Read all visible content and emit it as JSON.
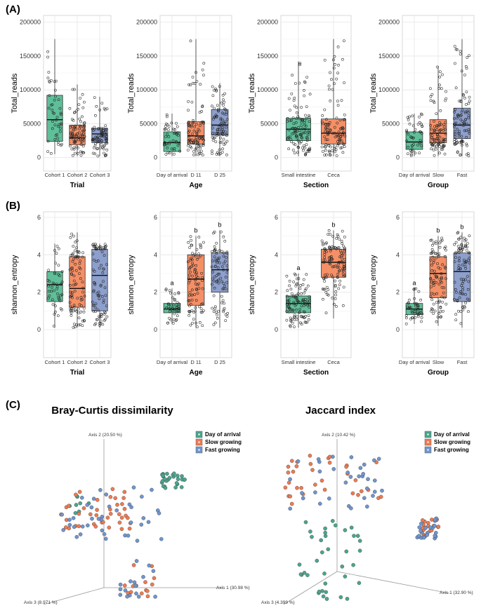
{
  "panel_labels": [
    "(A)",
    "(B)",
    "(C)"
  ],
  "colors": {
    "cat1": "#66c2a5",
    "cat2": "#fc8d62",
    "cat3": "#8da0cb",
    "box1": "#5fbf99",
    "box2": "#f58f66",
    "box3": "#8d9fcc",
    "grid": "#e6e6e6",
    "panel_border": "#cfcfcf",
    "leg_day": "#4aa58e",
    "leg_slow": "#f07a50",
    "leg_fast": "#6e95cf"
  },
  "chart_data": [
    {
      "type": "box",
      "panel": "A",
      "title": "",
      "ylabel": "Total_reads",
      "xlabel": "Trial",
      "ylim": [
        -20000,
        210000
      ],
      "yticks": [
        0,
        50000,
        100000,
        150000,
        200000
      ],
      "ytick_labels": [
        "0",
        "50000",
        "100000",
        "150000",
        "200000"
      ],
      "categories": [
        "Cohort 1",
        "Cohort 2",
        "Cohort 3"
      ],
      "boxes": [
        {
          "min": 5000,
          "q1": 24000,
          "median": 56000,
          "q3": 92000,
          "max": 175000,
          "n": 45,
          "seed": 11
        },
        {
          "min": 2000,
          "q1": 19000,
          "median": 29000,
          "q3": 48000,
          "max": 108000,
          "n": 85,
          "seed": 12
        },
        {
          "min": 2000,
          "q1": 22000,
          "median": 35000,
          "q3": 43000,
          "max": 90000,
          "n": 80,
          "seed": 13
        }
      ],
      "letters": [
        "",
        "",
        ""
      ]
    },
    {
      "type": "box",
      "panel": "A",
      "title": "",
      "ylabel": "Total_reads",
      "xlabel": "Age",
      "ylim": [
        -20000,
        210000
      ],
      "yticks": [
        0,
        50000,
        100000,
        150000,
        200000
      ],
      "ytick_labels": [
        "0",
        "50000",
        "100000",
        "150000",
        "200000"
      ],
      "categories": [
        "Day of arrival",
        "D 11",
        "D 25"
      ],
      "boxes": [
        {
          "min": 2000,
          "q1": 9000,
          "median": 22000,
          "q3": 38000,
          "max": 65000,
          "n": 45,
          "seed": 21
        },
        {
          "min": 2000,
          "q1": 20000,
          "median": 32000,
          "q3": 53000,
          "max": 175000,
          "n": 90,
          "seed": 22
        },
        {
          "min": 2000,
          "q1": 33000,
          "median": 48000,
          "q3": 71000,
          "max": 110000,
          "n": 90,
          "seed": 23
        }
      ],
      "letters": [
        "",
        "",
        ""
      ]
    },
    {
      "type": "box",
      "panel": "A",
      "title": "",
      "ylabel": "Total_reads",
      "xlabel": "Section",
      "ylim": [
        -20000,
        210000
      ],
      "yticks": [
        0,
        50000,
        100000,
        150000,
        200000
      ],
      "ytick_labels": [
        "0",
        "50000",
        "100000",
        "150000",
        "200000"
      ],
      "categories": [
        "Small intestine",
        "Ceca"
      ],
      "boxes": [
        {
          "min": 2000,
          "q1": 25000,
          "median": 42000,
          "q3": 58000,
          "max": 142000,
          "n": 110,
          "seed": 31
        },
        {
          "min": 2000,
          "q1": 20000,
          "median": 36000,
          "q3": 57000,
          "max": 175000,
          "n": 110,
          "seed": 32
        }
      ],
      "letters": [
        "",
        ""
      ]
    },
    {
      "type": "box",
      "panel": "A",
      "title": "",
      "ylabel": "Total_reads",
      "xlabel": "Group",
      "ylim": [
        -20000,
        210000
      ],
      "yticks": [
        0,
        50000,
        100000,
        150000,
        200000
      ],
      "ytick_labels": [
        "0",
        "50000",
        "100000",
        "150000",
        "200000"
      ],
      "categories": [
        "Day of arrival",
        "Slow",
        "Fast"
      ],
      "boxes": [
        {
          "min": 2000,
          "q1": 12000,
          "median": 23000,
          "q3": 38000,
          "max": 65000,
          "n": 45,
          "seed": 41
        },
        {
          "min": 2000,
          "q1": 22000,
          "median": 36000,
          "q3": 56000,
          "max": 135000,
          "n": 90,
          "seed": 42
        },
        {
          "min": 2000,
          "q1": 28000,
          "median": 48000,
          "q3": 73000,
          "max": 175000,
          "n": 95,
          "seed": 43
        }
      ],
      "letters": [
        "",
        "",
        ""
      ]
    },
    {
      "type": "box",
      "panel": "B",
      "title": "",
      "ylabel": "shannon_entropy",
      "xlabel": "Trial",
      "ylim": [
        -1.5,
        6.3
      ],
      "yticks": [
        0,
        2,
        4,
        6
      ],
      "ytick_labels": [
        "0",
        "2",
        "4",
        "6"
      ],
      "categories": [
        "Cohort 1",
        "Cohort 2",
        "Cohort 3"
      ],
      "boxes": [
        {
          "min": 0.1,
          "q1": 1.5,
          "median": 2.4,
          "q3": 3.1,
          "max": 4.6,
          "n": 45,
          "seed": 51
        },
        {
          "min": 0.1,
          "q1": 1.2,
          "median": 2.2,
          "q3": 3.9,
          "max": 5.2,
          "n": 90,
          "seed": 52
        },
        {
          "min": 0.1,
          "q1": 1.0,
          "median": 2.9,
          "q3": 4.3,
          "max": 4.6,
          "n": 85,
          "seed": 53
        }
      ],
      "letters": [
        "",
        "",
        ""
      ]
    },
    {
      "type": "box",
      "panel": "B",
      "title": "",
      "ylabel": "shannon_entropy",
      "xlabel": "Age",
      "ylim": [
        -1.5,
        6.3
      ],
      "yticks": [
        0,
        2,
        4,
        6
      ],
      "ytick_labels": [
        "0",
        "2",
        "4",
        "6"
      ],
      "categories": [
        "Day of arrival",
        "D 11",
        "D 25"
      ],
      "boxes": [
        {
          "min": 0.3,
          "q1": 0.9,
          "median": 1.1,
          "q3": 1.4,
          "max": 2.2,
          "n": 45,
          "seed": 61
        },
        {
          "min": 0.1,
          "q1": 1.3,
          "median": 2.7,
          "q3": 4.0,
          "max": 5.0,
          "n": 90,
          "seed": 62
        },
        {
          "min": 0.1,
          "q1": 2.0,
          "median": 3.2,
          "q3": 4.1,
          "max": 5.3,
          "n": 85,
          "seed": 63
        }
      ],
      "letters": [
        "a",
        "b",
        "b"
      ]
    },
    {
      "type": "box",
      "panel": "B",
      "title": "",
      "ylabel": "shannon_entropy",
      "xlabel": "Section",
      "ylim": [
        -1.5,
        6.3
      ],
      "yticks": [
        0,
        2,
        4,
        6
      ],
      "ytick_labels": [
        "0",
        "2",
        "4",
        "6"
      ],
      "categories": [
        "Small intestine",
        "Ceca"
      ],
      "boxes": [
        {
          "min": 0.1,
          "q1": 0.9,
          "median": 1.4,
          "q3": 1.8,
          "max": 3.0,
          "n": 110,
          "seed": 71
        },
        {
          "min": 0.6,
          "q1": 2.8,
          "median": 3.6,
          "q3": 4.3,
          "max": 5.3,
          "n": 120,
          "seed": 72
        }
      ],
      "letters": [
        "a",
        "b"
      ]
    },
    {
      "type": "box",
      "panel": "B",
      "title": "",
      "ylabel": "shannon_entropy",
      "xlabel": "Group",
      "ylim": [
        -1.5,
        6.3
      ],
      "yticks": [
        0,
        2,
        4,
        6
      ],
      "ytick_labels": [
        "0",
        "2",
        "4",
        "6"
      ],
      "categories": [
        "Day of arrival",
        "Slow",
        "Fast"
      ],
      "boxes": [
        {
          "min": 0.3,
          "q1": 0.8,
          "median": 1.1,
          "q3": 1.4,
          "max": 2.2,
          "n": 45,
          "seed": 81
        },
        {
          "min": 0.2,
          "q1": 1.7,
          "median": 3.0,
          "q3": 3.9,
          "max": 5.0,
          "n": 90,
          "seed": 82
        },
        {
          "min": 0.1,
          "q1": 1.5,
          "median": 3.1,
          "q3": 4.1,
          "max": 5.2,
          "n": 90,
          "seed": 83
        }
      ],
      "letters": [
        "a",
        "b",
        "b"
      ]
    },
    {
      "type": "scatter",
      "panel": "C",
      "projection": "3d-pcoa",
      "title": "Bray-Curtis dissimilarity",
      "axis_labels": [
        "Axis 1 (30.98 %)",
        "Axis 2 (20.50 %)",
        "Axis 3 (8.971 %)"
      ],
      "legend": [
        "Day of arrival",
        "Slow growing",
        "Fast growing"
      ],
      "legend_position": "top-right",
      "clusters": [
        {
          "series": 0,
          "n": 28,
          "x": [
            0.76,
            0.94
          ],
          "y": [
            0.16,
            0.26
          ],
          "seed": 101
        },
        {
          "series": 0,
          "n": 8,
          "x": [
            0.08,
            0.32
          ],
          "y": [
            0.3,
            0.42
          ],
          "seed": 102
        },
        {
          "series": 1,
          "n": 40,
          "x": [
            0.02,
            0.55
          ],
          "y": [
            0.26,
            0.52
          ],
          "seed": 103
        },
        {
          "series": 2,
          "n": 40,
          "x": [
            0.02,
            0.78
          ],
          "y": [
            0.24,
            0.6
          ],
          "seed": 104
        },
        {
          "series": 1,
          "n": 14,
          "x": [
            0.48,
            0.72
          ],
          "y": [
            0.72,
            0.98
          ],
          "seed": 105
        },
        {
          "series": 2,
          "n": 16,
          "x": [
            0.46,
            0.74
          ],
          "y": [
            0.7,
            0.98
          ],
          "seed": 106
        }
      ]
    },
    {
      "type": "scatter",
      "panel": "C",
      "projection": "3d-pcoa",
      "title": "Jaccard index",
      "axis_labels": [
        "Axis 1 (32.90 %)",
        "Axis 2 (10.42 %)",
        "Axis 3 (4.399 %)"
      ],
      "legend": [
        "Day of arrival",
        "Slow growing",
        "Fast growing"
      ],
      "legend_position": "top-right",
      "clusters": [
        {
          "series": 0,
          "n": 38,
          "x": [
            0.08,
            0.48
          ],
          "y": [
            0.45,
            0.98
          ],
          "seed": 201
        },
        {
          "series": 1,
          "n": 34,
          "x": [
            0.0,
            0.62
          ],
          "y": [
            0.02,
            0.35
          ],
          "seed": 202
        },
        {
          "series": 2,
          "n": 34,
          "x": [
            0.0,
            0.62
          ],
          "y": [
            0.02,
            0.38
          ],
          "seed": 203
        },
        {
          "series": 1,
          "n": 22,
          "x": [
            0.84,
            0.98
          ],
          "y": [
            0.44,
            0.58
          ],
          "seed": 204
        },
        {
          "series": 2,
          "n": 22,
          "x": [
            0.84,
            0.98
          ],
          "y": [
            0.44,
            0.58
          ],
          "seed": 205
        }
      ]
    }
  ]
}
